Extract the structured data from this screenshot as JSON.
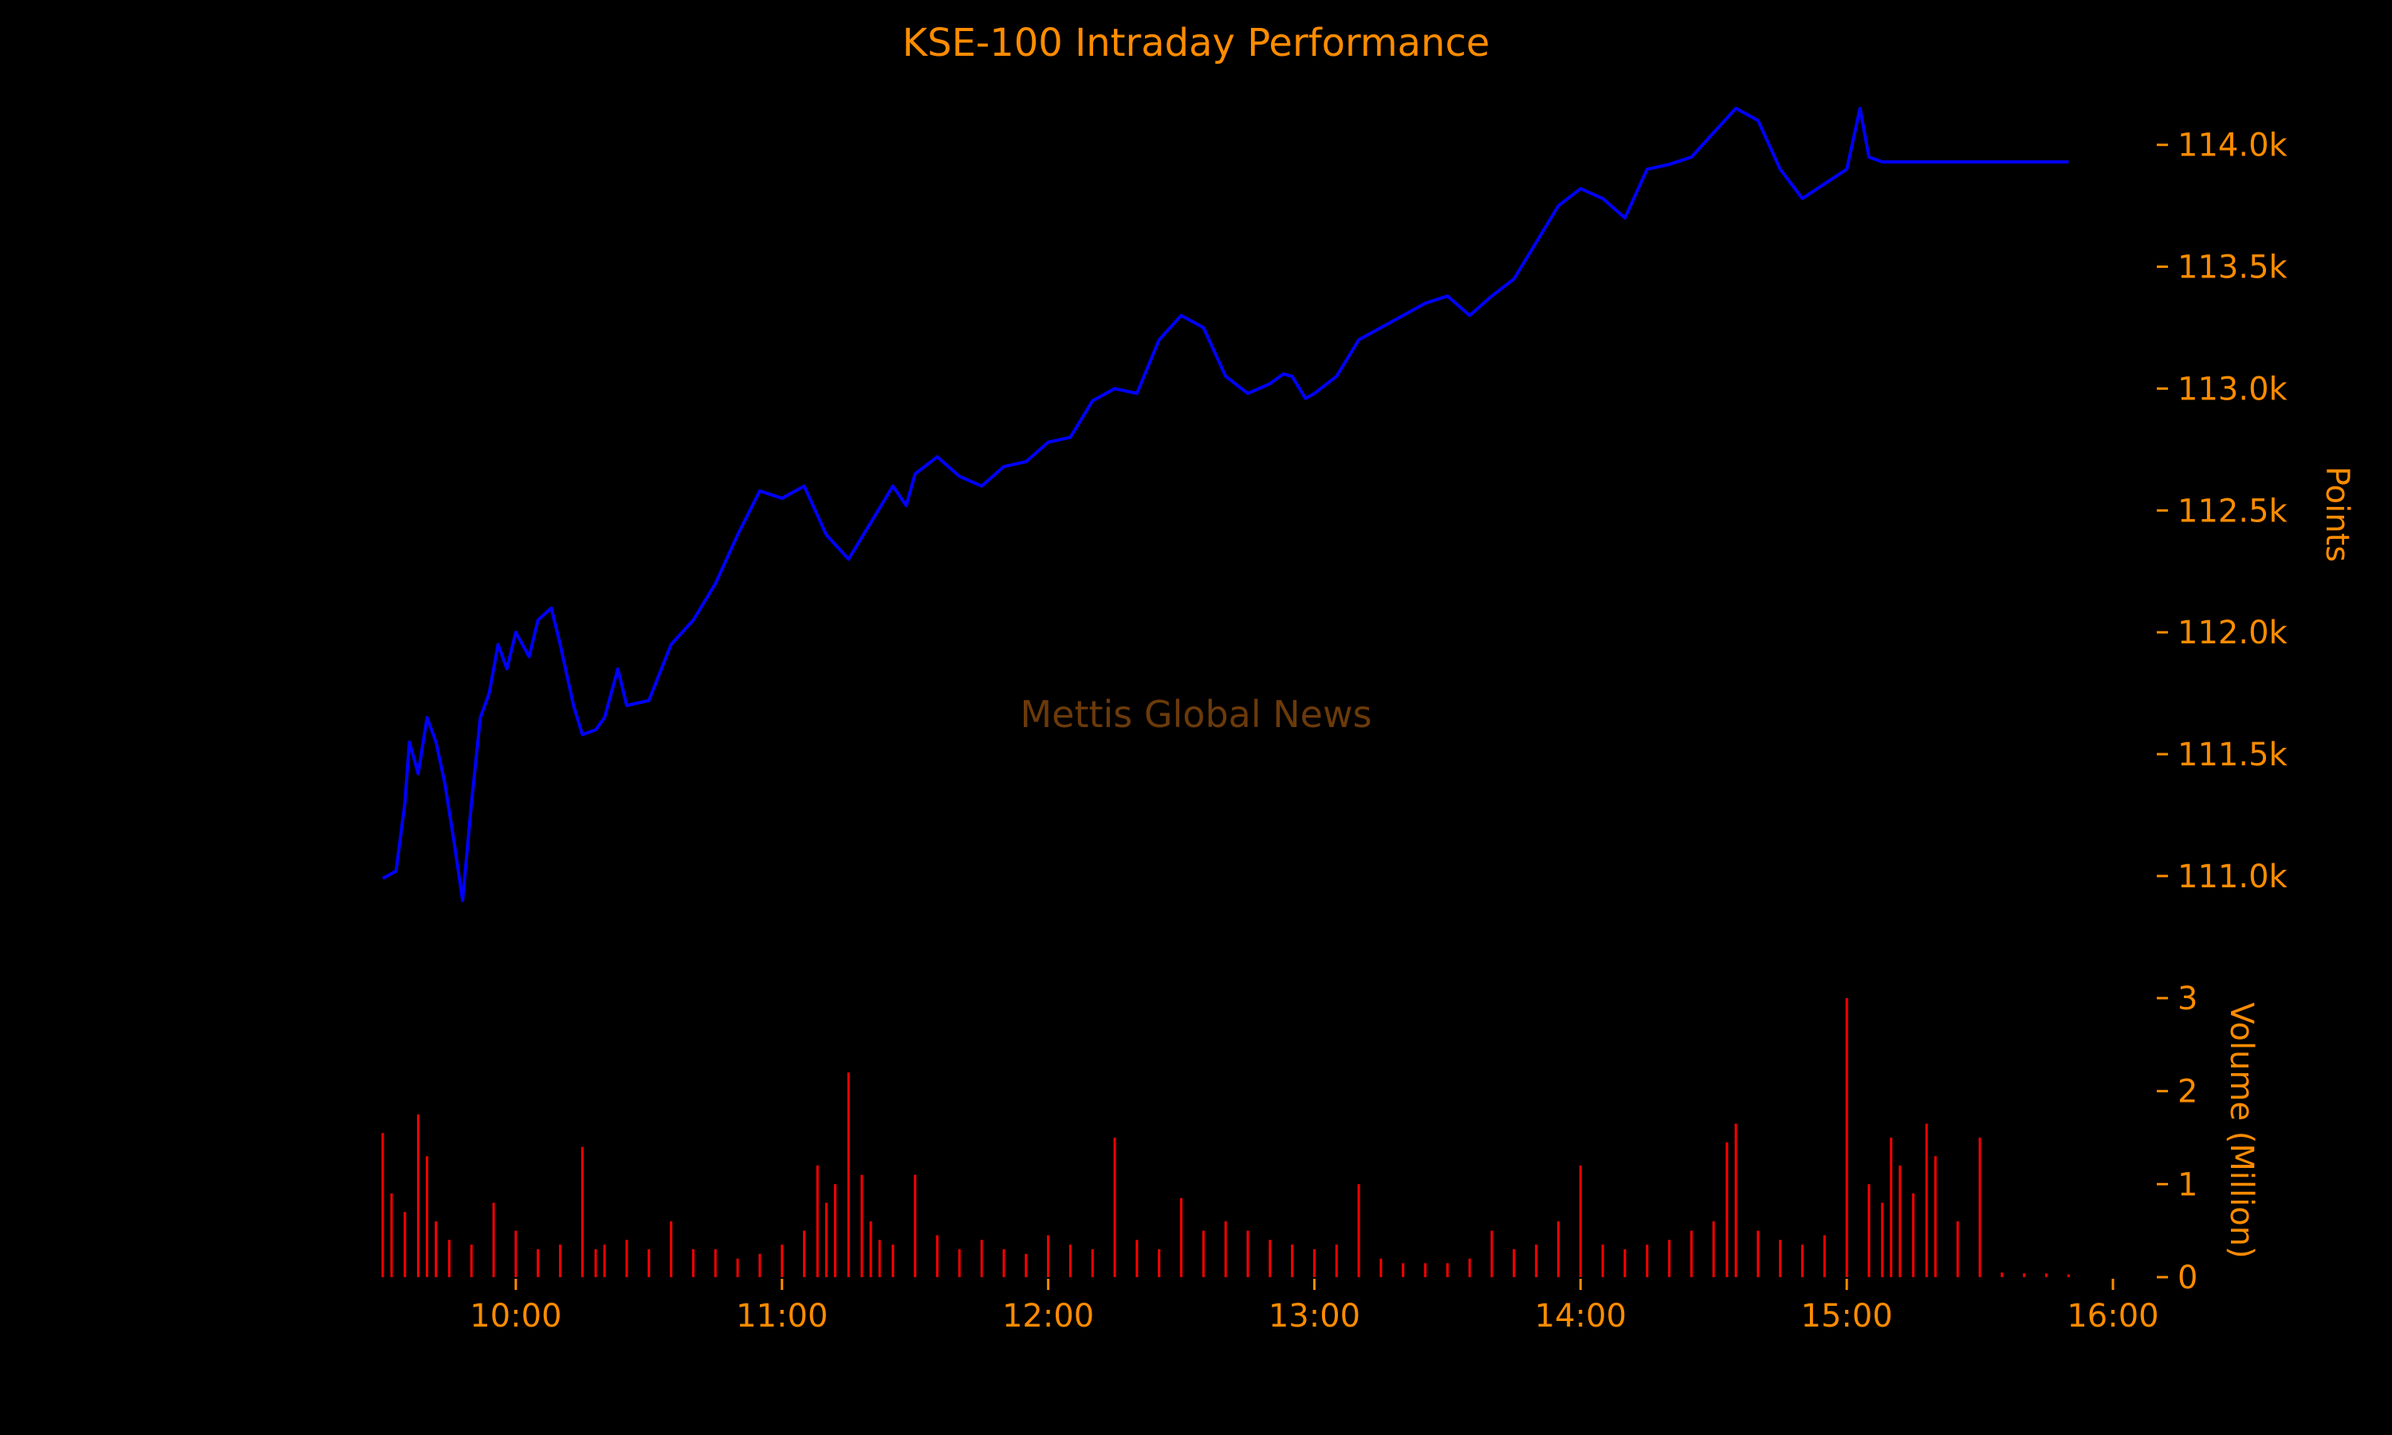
{
  "colors": {
    "background": "#000000",
    "text": "#ff8c00",
    "price_line": "#0000ff",
    "volume_bars": "#ff0000",
    "watermark": "#6b3a0a"
  },
  "watermark": "Mettis Global News",
  "chart_data": [
    {
      "type": "line",
      "title": "KSE-100 Intraday Performance",
      "ylabel": "Points",
      "y_axis_side": "right",
      "xlim": [
        "09:30",
        "16:00"
      ],
      "ylim": [
        110800,
        114300
      ],
      "yticks": [
        111000,
        111500,
        112000,
        112500,
        113000,
        113500,
        114000
      ],
      "ytick_labels": [
        "111.0k",
        "111.5k",
        "112.0k",
        "112.5k",
        "113.0k",
        "113.5k",
        "114.0k"
      ],
      "grid": false,
      "series": [
        {
          "x": [
            "09:30",
            "09:33",
            "09:35",
            "09:36",
            "09:38",
            "09:40",
            "09:42",
            "09:44",
            "09:46",
            "09:48",
            "09:50",
            "09:52",
            "09:54",
            "09:56",
            "09:58",
            "10:00",
            "10:03",
            "10:05",
            "10:08",
            "10:10",
            "10:13",
            "10:15",
            "10:18",
            "10:20",
            "10:23",
            "10:25",
            "10:30",
            "10:35",
            "10:40",
            "10:45",
            "10:50",
            "10:55",
            "11:00",
            "11:05",
            "11:10",
            "11:15",
            "11:20",
            "11:25",
            "11:28",
            "11:30",
            "11:35",
            "11:40",
            "11:45",
            "11:50",
            "11:55",
            "12:00",
            "12:05",
            "12:10",
            "12:15",
            "12:20",
            "12:25",
            "12:30",
            "12:35",
            "12:40",
            "12:45",
            "12:50",
            "12:53",
            "12:55",
            "12:58",
            "13:00",
            "13:05",
            "13:10",
            "13:15",
            "13:20",
            "13:25",
            "13:30",
            "13:35",
            "13:40",
            "13:45",
            "13:50",
            "13:55",
            "14:00",
            "14:05",
            "14:10",
            "14:15",
            "14:20",
            "14:25",
            "14:30",
            "14:35",
            "14:40",
            "14:45",
            "14:50",
            "14:55",
            "15:00",
            "15:03",
            "15:05",
            "15:08",
            "15:10",
            "15:13",
            "15:15",
            "15:18",
            "15:20",
            "15:25",
            "15:28",
            "15:30",
            "15:40",
            "15:50"
          ],
          "y": [
            110990,
            111020,
            111300,
            111550,
            111420,
            111650,
            111550,
            111380,
            111150,
            110900,
            111300,
            111650,
            111750,
            111950,
            111850,
            112000,
            111900,
            112050,
            112100,
            111950,
            111700,
            111580,
            111600,
            111650,
            111850,
            111700,
            111720,
            111950,
            112050,
            112200,
            112400,
            112580,
            112550,
            112600,
            112400,
            112300,
            112450,
            112600,
            112520,
            112650,
            112720,
            112640,
            112600,
            112680,
            112700,
            112780,
            112800,
            112950,
            113000,
            112980,
            113200,
            113300,
            113250,
            113050,
            112980,
            113020,
            113060,
            113050,
            112960,
            112980,
            113050,
            113200,
            113250,
            113300,
            113350,
            113380,
            113300,
            113380,
            113450,
            113600,
            113750,
            113820,
            113780,
            113700,
            113900,
            113920,
            113950,
            114050,
            114150,
            114100,
            113900,
            113780,
            113840,
            113900,
            114150,
            113950,
            113930,
            113930,
            113930,
            113930,
            113930,
            113930,
            113930,
            113930,
            113930,
            113930,
            113930
          ]
        }
      ]
    },
    {
      "type": "bar",
      "ylabel": "Volume (Million)",
      "y_axis_side": "right",
      "xlim": [
        "09:30",
        "16:00"
      ],
      "ylim": [
        0,
        3
      ],
      "yticks": [
        0,
        1,
        2,
        3
      ],
      "ytick_labels": [
        "0",
        "1",
        "2",
        "3"
      ],
      "xticks": [
        "10:00",
        "11:00",
        "12:00",
        "13:00",
        "14:00",
        "15:00",
        "16:00"
      ],
      "grid": false,
      "x": [
        "09:30",
        "09:32",
        "09:35",
        "09:38",
        "09:40",
        "09:42",
        "09:45",
        "09:50",
        "09:55",
        "10:00",
        "10:05",
        "10:10",
        "10:15",
        "10:18",
        "10:20",
        "10:25",
        "10:30",
        "10:35",
        "10:40",
        "10:45",
        "10:50",
        "10:55",
        "11:00",
        "11:05",
        "11:08",
        "11:10",
        "11:12",
        "11:15",
        "11:18",
        "11:20",
        "11:22",
        "11:25",
        "11:30",
        "11:35",
        "11:40",
        "11:45",
        "11:50",
        "11:55",
        "12:00",
        "12:05",
        "12:10",
        "12:15",
        "12:20",
        "12:25",
        "12:30",
        "12:35",
        "12:40",
        "12:45",
        "12:50",
        "12:55",
        "13:00",
        "13:05",
        "13:10",
        "13:15",
        "13:20",
        "13:25",
        "13:30",
        "13:35",
        "13:40",
        "13:45",
        "13:50",
        "13:55",
        "14:00",
        "14:05",
        "14:10",
        "14:15",
        "14:20",
        "14:25",
        "14:30",
        "14:33",
        "14:35",
        "14:40",
        "14:45",
        "14:50",
        "14:55",
        "15:00",
        "15:05",
        "15:08",
        "15:10",
        "15:12",
        "15:15",
        "15:18",
        "15:20",
        "15:25",
        "15:30",
        "15:35",
        "15:40",
        "15:45",
        "15:50"
      ],
      "values": [
        1.55,
        0.9,
        0.7,
        1.75,
        1.3,
        0.6,
        0.4,
        0.35,
        0.8,
        0.5,
        0.3,
        0.35,
        1.4,
        0.3,
        0.35,
        0.4,
        0.3,
        0.6,
        0.3,
        0.3,
        0.2,
        0.25,
        0.35,
        0.5,
        1.2,
        0.8,
        1.0,
        2.2,
        1.1,
        0.6,
        0.4,
        0.35,
        1.1,
        0.45,
        0.3,
        0.4,
        0.3,
        0.25,
        0.45,
        0.35,
        0.3,
        1.5,
        0.4,
        0.3,
        0.85,
        0.5,
        0.6,
        0.5,
        0.4,
        0.35,
        0.3,
        0.35,
        1.0,
        0.2,
        0.15,
        0.15,
        0.15,
        0.2,
        0.5,
        0.3,
        0.35,
        0.6,
        1.2,
        0.35,
        0.3,
        0.35,
        0.4,
        0.5,
        0.6,
        1.45,
        1.65,
        0.5,
        0.4,
        0.35,
        0.45,
        3.0,
        1.0,
        0.8,
        1.5,
        1.2,
        0.9,
        1.65,
        1.3,
        0.6,
        1.5,
        0.05,
        0.04,
        0.04,
        0.03
      ]
    }
  ]
}
